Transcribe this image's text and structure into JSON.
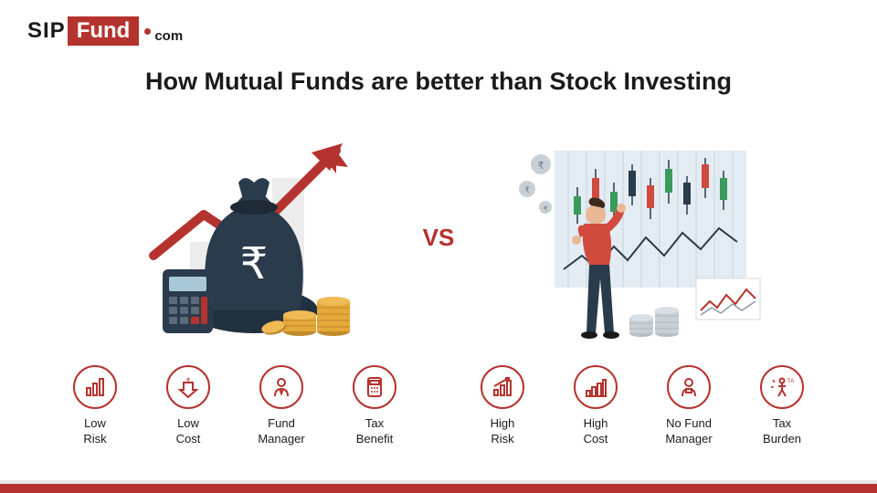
{
  "logo": {
    "part1": "SIP",
    "part2": "Fund",
    "part3": "com"
  },
  "title": "How Mutual Funds are better than Stock Investing",
  "vs": "VS",
  "colors": {
    "brand": "#b5332f",
    "text": "#1a1a1a",
    "bag": "#2a3b4c",
    "coin": "#e5a83a",
    "coin_edge": "#c08a2a",
    "calc": "#2a3b4c",
    "shirt": "#d04a3e",
    "pants": "#2a3b4c",
    "bar_bg": "#e8e8e8",
    "chart_bg": "#e3ecf2",
    "bubble": "#c8d0d6"
  },
  "left_illustration": {
    "type": "infographic",
    "description": "money-bag-with-arrow",
    "arrow_color": "#b5332f",
    "bag_color": "#2a3b4c",
    "rupee_symbol": "₹"
  },
  "right_illustration": {
    "type": "infographic",
    "description": "man-looking-at-stock-chart",
    "chart_bg": "#e3ecf2",
    "candle_up": "#3a9b5c",
    "candle_down": "#d04a3e"
  },
  "left_features": [
    {
      "name": "low-risk",
      "label": "Low\nRisk",
      "icon": "bars"
    },
    {
      "name": "low-cost",
      "label": "Low\nCost",
      "icon": "down-arrow"
    },
    {
      "name": "fund-manager",
      "label": "Fund\nManager",
      "icon": "person"
    },
    {
      "name": "tax-benefit",
      "label": "Tax\nBenefit",
      "icon": "calculator"
    }
  ],
  "right_features": [
    {
      "name": "high-risk",
      "label": "High\nRisk",
      "icon": "bars-up"
    },
    {
      "name": "high-cost",
      "label": "High\nCost",
      "icon": "bars-stair"
    },
    {
      "name": "no-fund-manager",
      "label": "No Fund\nManager",
      "icon": "person-x"
    },
    {
      "name": "tax-burden",
      "label": "Tax\nBurden",
      "icon": "burden"
    }
  ]
}
